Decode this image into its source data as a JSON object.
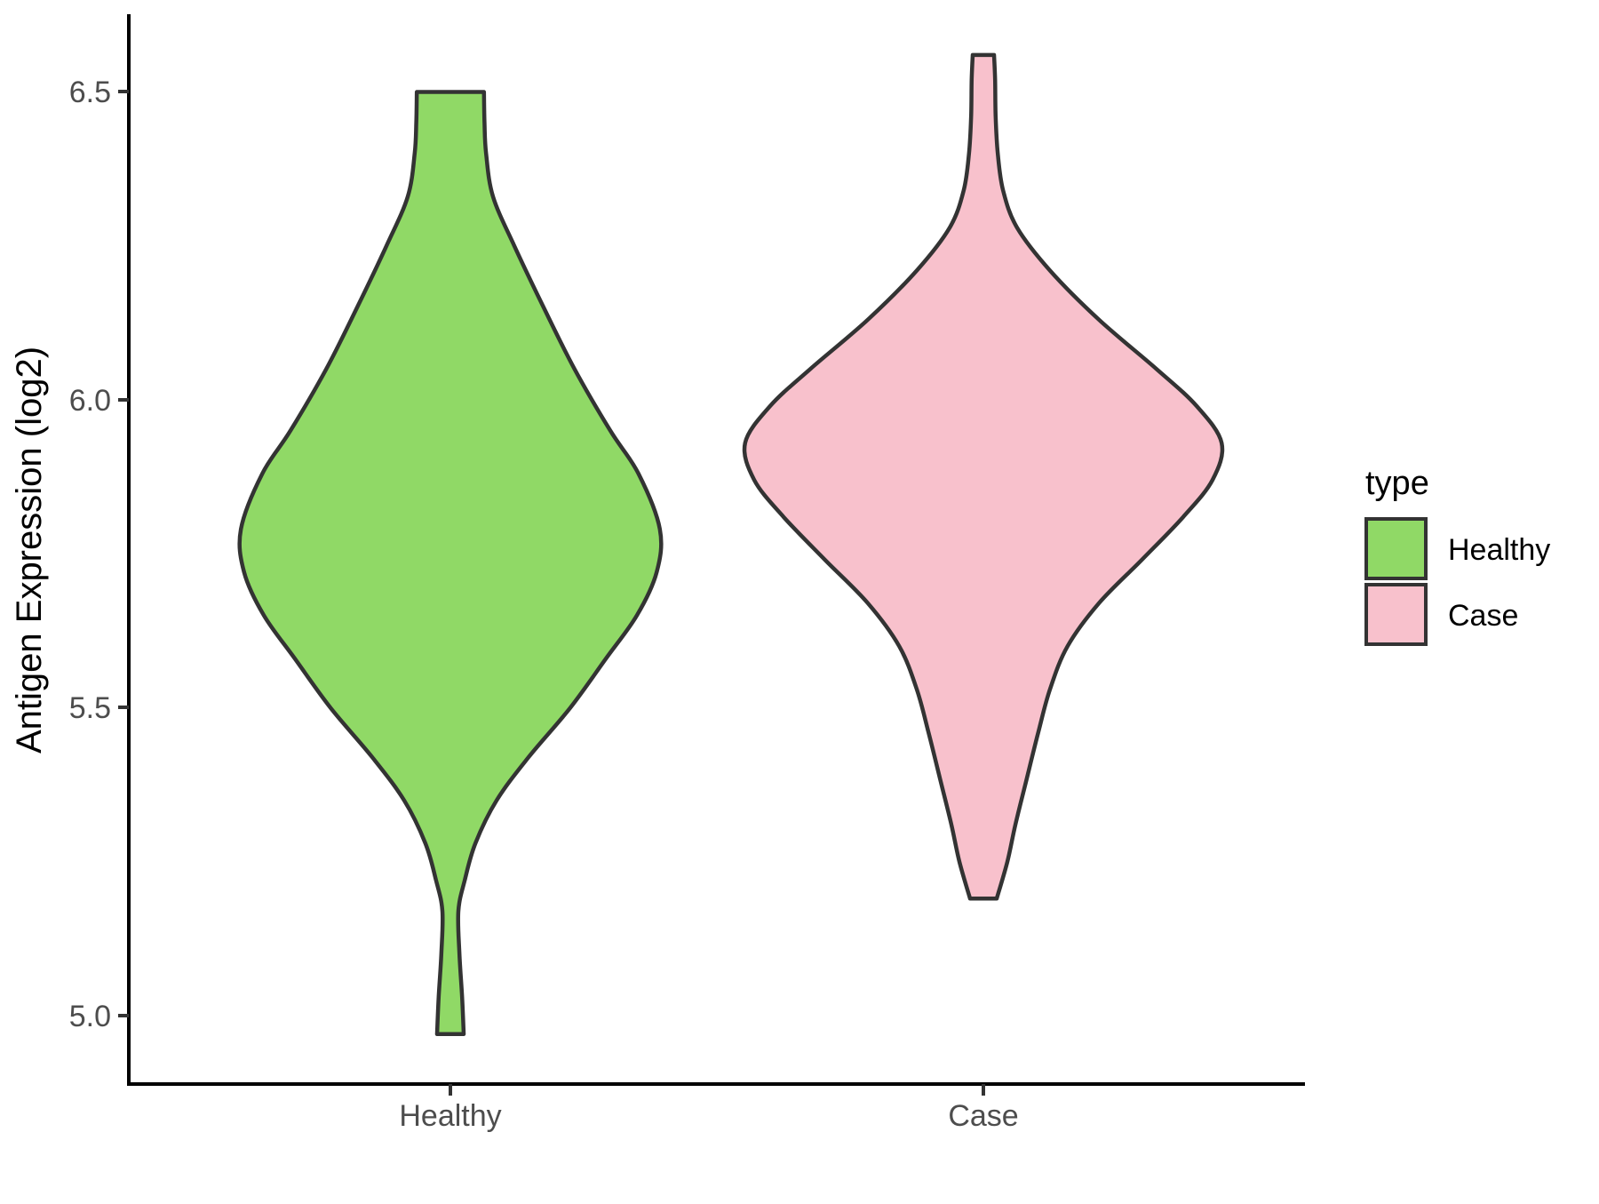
{
  "chart_data": {
    "type": "violin",
    "title": "",
    "xlabel": "",
    "ylabel": "Antigen Expression (log2)",
    "categories": [
      "Healthy",
      "Case"
    ],
    "y_ticks": [
      6.5,
      6.0,
      5.5,
      5.0
    ],
    "y_tick_labels": [
      "6.5",
      "6.0",
      "5.5",
      "5.0"
    ],
    "ylim": [
      4.89,
      6.62
    ],
    "grid": "off",
    "legend_position": "right",
    "legend": {
      "title": "type",
      "entries": [
        {
          "label": "Healthy",
          "color": "#90D966"
        },
        {
          "label": "Case",
          "color": "#F8C1CC"
        }
      ]
    },
    "outline_color": "#333333",
    "axis_color": "#000000",
    "tick_label_color": "#4D4D4D",
    "series": [
      {
        "name": "Healthy",
        "fill": "#90D966",
        "value_range": [
          4.97,
          6.5
        ],
        "peak_value": 5.79,
        "max_halfwidth_fraction": 0.393,
        "profile": [
          [
            6.5,
            0.063
          ],
          [
            6.45,
            0.064
          ],
          [
            6.4,
            0.067
          ],
          [
            6.33,
            0.08
          ],
          [
            6.25,
            0.12
          ],
          [
            6.15,
            0.175
          ],
          [
            6.05,
            0.233
          ],
          [
            5.95,
            0.3
          ],
          [
            5.88,
            0.353
          ],
          [
            5.79,
            0.393
          ],
          [
            5.72,
            0.387
          ],
          [
            5.65,
            0.35
          ],
          [
            5.58,
            0.292
          ],
          [
            5.5,
            0.225
          ],
          [
            5.42,
            0.147
          ],
          [
            5.35,
            0.087
          ],
          [
            5.28,
            0.047
          ],
          [
            5.22,
            0.027
          ],
          [
            5.17,
            0.015
          ],
          [
            5.1,
            0.017
          ],
          [
            5.03,
            0.022
          ],
          [
            4.97,
            0.025
          ]
        ]
      },
      {
        "name": "Case",
        "fill": "#F8C1CC",
        "value_range": [
          5.19,
          6.56
        ],
        "peak_value": 5.93,
        "max_halfwidth_fraction": 0.447,
        "profile": [
          [
            6.56,
            0.02
          ],
          [
            6.52,
            0.022
          ],
          [
            6.46,
            0.023
          ],
          [
            6.4,
            0.027
          ],
          [
            6.34,
            0.037
          ],
          [
            6.28,
            0.063
          ],
          [
            6.21,
            0.125
          ],
          [
            6.13,
            0.217
          ],
          [
            6.05,
            0.325
          ],
          [
            5.99,
            0.4
          ],
          [
            5.93,
            0.447
          ],
          [
            5.87,
            0.43
          ],
          [
            5.81,
            0.375
          ],
          [
            5.74,
            0.297
          ],
          [
            5.67,
            0.217
          ],
          [
            5.6,
            0.158
          ],
          [
            5.53,
            0.125
          ],
          [
            5.46,
            0.103
          ],
          [
            5.38,
            0.08
          ],
          [
            5.31,
            0.06
          ],
          [
            5.25,
            0.045
          ],
          [
            5.19,
            0.025
          ]
        ]
      }
    ]
  }
}
